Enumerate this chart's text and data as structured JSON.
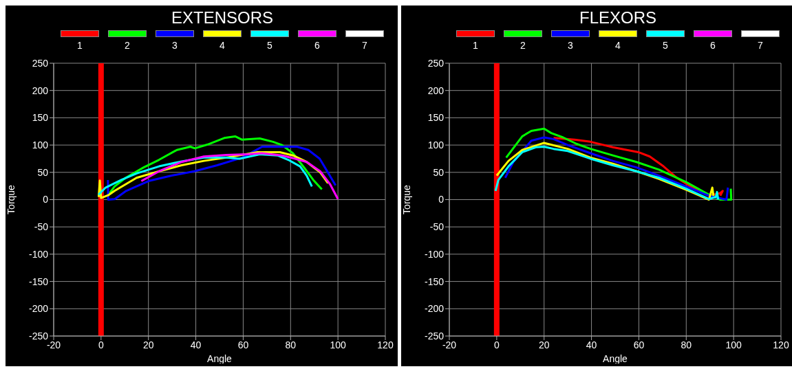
{
  "chart_data": [
    {
      "type": "line",
      "title": "EXTENSORS",
      "xlabel": "Angle",
      "ylabel": "Torque",
      "legend": "top",
      "grid": true,
      "xlim": [
        -20,
        120
      ],
      "xticks": [
        -20,
        0,
        20,
        40,
        60,
        80,
        100,
        120
      ],
      "ylim": [
        -250,
        250
      ],
      "yticks": [
        -250,
        -200,
        -150,
        -100,
        -50,
        0,
        50,
        100,
        150,
        200,
        250
      ],
      "ref_lines": [
        {
          "axis": "x",
          "value": 0,
          "color": "#ff0000"
        }
      ],
      "series": [
        {
          "name": "1",
          "color": "#ff0000"
        },
        {
          "name": "2",
          "color": "#00ff00",
          "x": [
            2.8,
            5.7,
            10.4,
            18,
            24.5,
            32,
            37.7,
            39.6,
            45,
            52,
            56.6,
            59.4,
            67,
            72.6,
            76.4,
            81,
            86,
            89.6,
            93.2
          ],
          "values": [
            7,
            24,
            40,
            59,
            73,
            91,
            97,
            94,
            101,
            113,
            116,
            110,
            112,
            106,
            100,
            85,
            57,
            36,
            19
          ]
        },
        {
          "name": "3",
          "color": "#0000ff",
          "x": [
            2.9,
            3,
            5.8,
            10.6,
            20,
            29.8,
            39.4,
            49,
            59.6,
            68,
            77.9,
            82.7,
            87.5,
            92.3,
            96,
            99
          ],
          "values": [
            36,
            0,
            1,
            16,
            34,
            44,
            52,
            63,
            77,
            97,
            97,
            97,
            91,
            75,
            48,
            26
          ]
        },
        {
          "name": "4",
          "color": "#ffff00",
          "x": [
            -1,
            -0.5,
            0,
            3,
            5.7,
            15,
            24.5,
            34,
            43.4,
            52.8,
            66,
            75.5,
            81,
            86.8,
            92.5,
            95.8
          ],
          "values": [
            5,
            35,
            3,
            8,
            16,
            40,
            52,
            63,
            71,
            77,
            87,
            87,
            81,
            69,
            50,
            30
          ]
        },
        {
          "name": "5",
          "color": "#00ffff",
          "x": [
            -1.1,
            1.9,
            8.5,
            15,
            24.5,
            34,
            43.4,
            52.8,
            58.5,
            67,
            74.5,
            79,
            84,
            86.8,
            89
          ],
          "values": [
            9,
            22,
            36,
            48,
            61,
            70,
            77,
            77,
            75,
            83,
            81,
            73,
            61,
            44,
            24
          ]
        },
        {
          "name": "6",
          "color": "#ff00ff",
          "x": [
            17,
            24.5,
            34,
            43.4,
            52.8,
            62,
            67.9,
            76.4,
            82,
            86.8,
            92.5,
            96.7,
            100
          ],
          "values": [
            34,
            52,
            69,
            79,
            82,
            83,
            85,
            81,
            75,
            69,
            52,
            28,
            1
          ]
        },
        {
          "name": "7",
          "color": "#ffffff"
        }
      ]
    },
    {
      "type": "line",
      "title": "FLEXORS",
      "xlabel": "Angle",
      "ylabel": "Torque",
      "legend": "top",
      "grid": true,
      "xlim": [
        -20,
        120
      ],
      "xticks": [
        -20,
        0,
        20,
        40,
        60,
        80,
        100,
        120
      ],
      "ylim": [
        -250,
        250
      ],
      "yticks": [
        -250,
        -200,
        -150,
        -100,
        -50,
        0,
        50,
        100,
        150,
        200,
        250
      ],
      "ref_lines": [
        {
          "axis": "x",
          "value": 0,
          "color": "#ff0000"
        }
      ],
      "series": [
        {
          "name": "1",
          "color": "#ff0000",
          "x": [
            24,
            32.9,
            39.6,
            49,
            59.8,
            64.6,
            70.4,
            76,
            81.9,
            89.6,
            94.4,
            95.4,
            94.4
          ],
          "values": [
            113,
            110,
            106,
            96,
            87,
            79,
            61,
            40,
            24,
            7,
            12,
            16,
            7
          ]
        },
        {
          "name": "2",
          "color": "#00ff00",
          "x": [
            4,
            10.8,
            14.6,
            20,
            23,
            28,
            33.8,
            39.6,
            49,
            59,
            68.5,
            80,
            89.6,
            94.4,
            99,
            98.8
          ],
          "values": [
            77,
            116,
            126,
            130,
            122,
            114,
            102,
            93,
            81,
            69,
            55,
            32,
            9,
            0,
            0,
            20
          ]
        },
        {
          "name": "3",
          "color": "#0000ff",
          "x": [
            3.6,
            7,
            14.6,
            20,
            24,
            30,
            39.6,
            49,
            59,
            68.5,
            80,
            89.6,
            97,
            97.6
          ],
          "values": [
            40,
            69,
            108,
            114,
            111,
            100,
            85,
            71,
            59,
            44,
            24,
            7,
            0,
            22
          ]
        },
        {
          "name": "4",
          "color": "#ffff00",
          "x": [
            0,
            5,
            10.8,
            20,
            30,
            39.6,
            49,
            59,
            68.5,
            80,
            89.6,
            91,
            91.5
          ],
          "values": [
            44,
            71,
            91,
            104,
            93,
            77,
            66,
            52,
            38,
            18,
            0,
            22,
            7
          ]
        },
        {
          "name": "5",
          "color": "#00ffff",
          "x": [
            -0.5,
            0.7,
            5,
            10.8,
            16.5,
            20,
            24,
            30,
            39.6,
            49,
            59,
            68.5,
            80,
            89.6,
            92.5,
            93,
            93.5
          ],
          "values": [
            16,
            36,
            61,
            87,
            96,
            97,
            93,
            89,
            75,
            63,
            52,
            40,
            20,
            1,
            5,
            14,
            0
          ]
        },
        {
          "name": "6",
          "color": "#ff00ff"
        },
        {
          "name": "7",
          "color": "#ffffff"
        }
      ]
    }
  ]
}
